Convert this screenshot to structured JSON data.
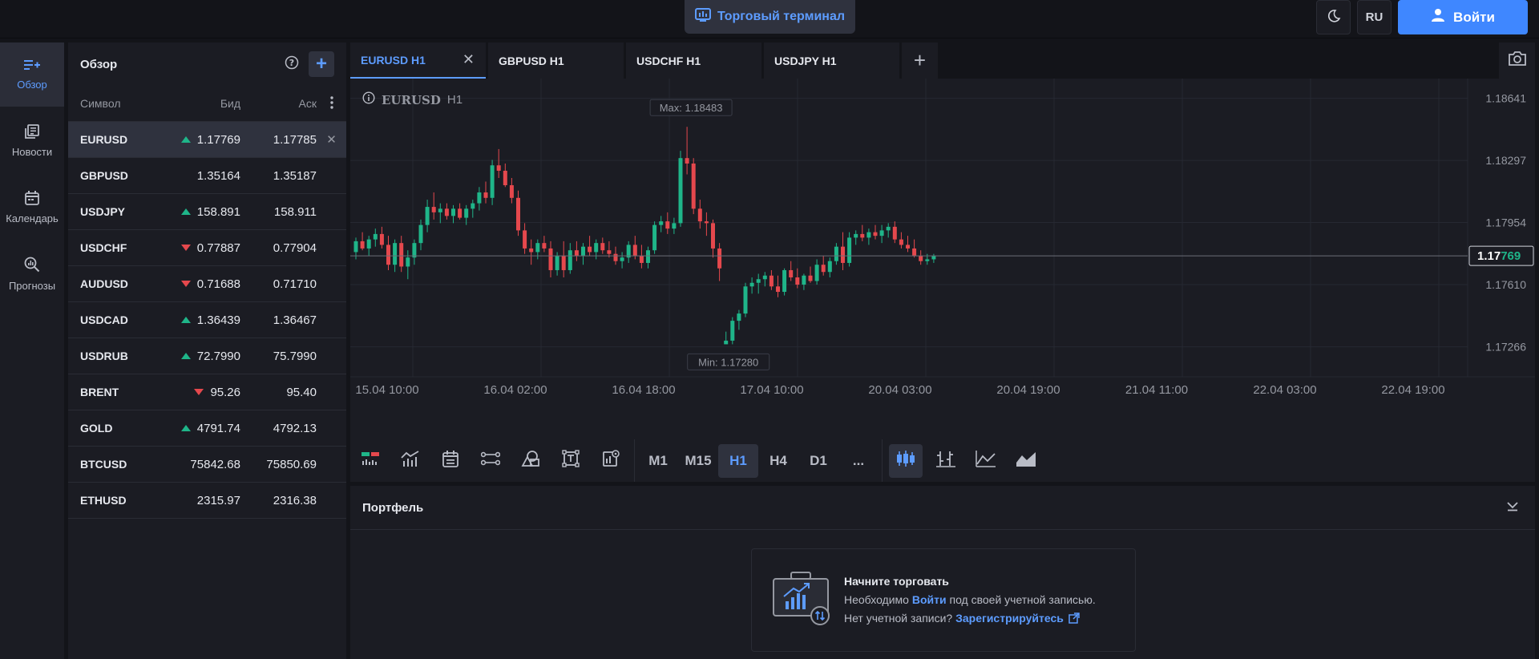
{
  "header": {
    "terminal_label": "Торговый терминал",
    "lang": "RU",
    "login_label": "Войти"
  },
  "nav": {
    "items": [
      {
        "label": "Обзор",
        "icon": "overview-icon"
      },
      {
        "label": "Новости",
        "icon": "news-icon"
      },
      {
        "label": "Календарь",
        "icon": "calendar-icon"
      },
      {
        "label": "Прогнозы",
        "icon": "forecast-icon"
      }
    ]
  },
  "watchlist": {
    "title": "Обзор",
    "columns": {
      "symbol": "Символ",
      "bid": "Бид",
      "ask": "Аск"
    },
    "rows": [
      {
        "symbol": "EURUSD",
        "dir": "up",
        "bid": "1.17769",
        "ask": "1.17785"
      },
      {
        "symbol": "GBPUSD",
        "dir": "none",
        "bid": "1.35164",
        "ask": "1.35187"
      },
      {
        "symbol": "USDJPY",
        "dir": "up",
        "bid": "158.891",
        "ask": "158.911"
      },
      {
        "symbol": "USDCHF",
        "dir": "down",
        "bid": "0.77887",
        "ask": "0.77904"
      },
      {
        "symbol": "AUDUSD",
        "dir": "down",
        "bid": "0.71688",
        "ask": "0.71710"
      },
      {
        "symbol": "USDCAD",
        "dir": "up",
        "bid": "1.36439",
        "ask": "1.36467"
      },
      {
        "symbol": "USDRUB",
        "dir": "up",
        "bid": "72.7990",
        "ask": "75.7990"
      },
      {
        "symbol": "BRENT",
        "dir": "down",
        "bid": "95.26",
        "ask": "95.40"
      },
      {
        "symbol": "GOLD",
        "dir": "up",
        "bid": "4791.74",
        "ask": "4792.13"
      },
      {
        "symbol": "BTCUSD",
        "dir": "none",
        "bid": "75842.68",
        "ask": "75850.69"
      },
      {
        "symbol": "ETHUSD",
        "dir": "none",
        "bid": "2315.97",
        "ask": "2316.38"
      }
    ]
  },
  "tabs": [
    {
      "label": "EURUSD H1",
      "active": true
    },
    {
      "label": "GBPUSD H1",
      "active": false
    },
    {
      "label": "USDCHF H1",
      "active": false
    },
    {
      "label": "USDJPY H1",
      "active": false
    }
  ],
  "chart": {
    "symbol": "EURUSD",
    "timeframe": "H1",
    "current_price": "1.17769",
    "current_price_main": "1.17",
    "current_price_tail": "769"
  },
  "chart_data": {
    "type": "candlestick",
    "ylim": [
      1.171,
      1.1875
    ],
    "yticks": [
      1.18641,
      1.18297,
      1.17954,
      1.1761,
      1.17266
    ],
    "xticks": [
      "15.04 10:00",
      "16.04 02:00",
      "16.04 18:00",
      "17.04 10:00",
      "20.04 03:00",
      "20.04 19:00",
      "21.04 11:00",
      "22.04 03:00",
      "22.04 19:00"
    ],
    "max_label": "Max: 1.18483",
    "min_label": "Min: 1.17280",
    "current": 1.17769,
    "candles": [
      [
        1.1779,
        1.1787,
        1.1775,
        1.1785
      ],
      [
        1.1785,
        1.179,
        1.178,
        1.1781
      ],
      [
        1.1781,
        1.1788,
        1.1777,
        1.1786
      ],
      [
        1.1786,
        1.1792,
        1.1782,
        1.1789
      ],
      [
        1.1789,
        1.1793,
        1.1781,
        1.1783
      ],
      [
        1.1783,
        1.1788,
        1.1769,
        1.1772
      ],
      [
        1.1772,
        1.1786,
        1.1768,
        1.1784
      ],
      [
        1.1784,
        1.1788,
        1.1768,
        1.1771
      ],
      [
        1.1771,
        1.178,
        1.1764,
        1.1776
      ],
      [
        1.1776,
        1.1786,
        1.1772,
        1.1784
      ],
      [
        1.1784,
        1.1797,
        1.178,
        1.1794
      ],
      [
        1.1794,
        1.1808,
        1.179,
        1.1804
      ],
      [
        1.1804,
        1.1812,
        1.1797,
        1.1801
      ],
      [
        1.1801,
        1.1806,
        1.1795,
        1.1803
      ],
      [
        1.1803,
        1.1806,
        1.1797,
        1.1799
      ],
      [
        1.1799,
        1.1805,
        1.1795,
        1.1803
      ],
      [
        1.1803,
        1.1806,
        1.1797,
        1.1798
      ],
      [
        1.1798,
        1.1805,
        1.1794,
        1.1803
      ],
      [
        1.1803,
        1.1808,
        1.1798,
        1.1806
      ],
      [
        1.1806,
        1.1815,
        1.1802,
        1.1812
      ],
      [
        1.1812,
        1.1818,
        1.1806,
        1.1809
      ],
      [
        1.1809,
        1.183,
        1.1805,
        1.1827
      ],
      [
        1.1827,
        1.1836,
        1.182,
        1.1824
      ],
      [
        1.1824,
        1.1828,
        1.1815,
        1.1816
      ],
      [
        1.1816,
        1.182,
        1.1806,
        1.1809
      ],
      [
        1.1809,
        1.1813,
        1.1788,
        1.1791
      ],
      [
        1.1791,
        1.1795,
        1.1778,
        1.1781
      ],
      [
        1.1781,
        1.1786,
        1.1772,
        1.1779
      ],
      [
        1.1779,
        1.1786,
        1.1775,
        1.1784
      ],
      [
        1.1784,
        1.1788,
        1.1779,
        1.1781
      ],
      [
        1.1781,
        1.1785,
        1.1765,
        1.1769
      ],
      [
        1.1769,
        1.1779,
        1.1766,
        1.1777
      ],
      [
        1.1777,
        1.1785,
        1.1765,
        1.1769
      ],
      [
        1.1769,
        1.1784,
        1.1767,
        1.178
      ],
      [
        1.178,
        1.1785,
        1.1774,
        1.1777
      ],
      [
        1.1777,
        1.1784,
        1.1772,
        1.1782
      ],
      [
        1.1782,
        1.1788,
        1.1777,
        1.1779
      ],
      [
        1.1779,
        1.1786,
        1.1775,
        1.1784
      ],
      [
        1.1784,
        1.1787,
        1.1778,
        1.178
      ],
      [
        1.178,
        1.1785,
        1.1776,
        1.1778
      ],
      [
        1.1778,
        1.1782,
        1.1772,
        1.1774
      ],
      [
        1.1774,
        1.1779,
        1.177,
        1.1776
      ],
      [
        1.1776,
        1.1785,
        1.1773,
        1.1783
      ],
      [
        1.1783,
        1.1788,
        1.1775,
        1.1777
      ],
      [
        1.1777,
        1.1783,
        1.177,
        1.1773
      ],
      [
        1.1773,
        1.1782,
        1.177,
        1.178
      ],
      [
        1.178,
        1.1796,
        1.1778,
        1.1794
      ],
      [
        1.1794,
        1.1799,
        1.179,
        1.1796
      ],
      [
        1.1796,
        1.1801,
        1.1789,
        1.1792
      ],
      [
        1.1792,
        1.1798,
        1.1789,
        1.1795
      ],
      [
        1.1795,
        1.1835,
        1.1793,
        1.1831
      ],
      [
        1.1831,
        1.18483,
        1.1822,
        1.1828
      ],
      [
        1.1828,
        1.1831,
        1.18,
        1.1803
      ],
      [
        1.1803,
        1.1808,
        1.1792,
        1.1796
      ],
      [
        1.1796,
        1.1801,
        1.1788,
        1.1795
      ],
      [
        1.1795,
        1.1797,
        1.1776,
        1.1781
      ],
      [
        1.1781,
        1.1784,
        1.1763,
        1.177
      ],
      [
        1.1728,
        1.1735,
        1.1728,
        1.173
      ],
      [
        1.173,
        1.1743,
        1.1728,
        1.1741
      ],
      [
        1.1741,
        1.1747,
        1.1736,
        1.1745
      ],
      [
        1.1745,
        1.1762,
        1.1743,
        1.176
      ],
      [
        1.176,
        1.1765,
        1.1756,
        1.1762
      ],
      [
        1.1762,
        1.1767,
        1.1756,
        1.1764
      ],
      [
        1.1764,
        1.1768,
        1.176,
        1.1766
      ],
      [
        1.1766,
        1.1769,
        1.1758,
        1.176
      ],
      [
        1.176,
        1.1766,
        1.1754,
        1.1757
      ],
      [
        1.1757,
        1.177,
        1.1755,
        1.1769
      ],
      [
        1.1769,
        1.1774,
        1.1763,
        1.1765
      ],
      [
        1.1765,
        1.177,
        1.1759,
        1.1761
      ],
      [
        1.1761,
        1.1767,
        1.1758,
        1.1766
      ],
      [
        1.1766,
        1.1771,
        1.1762,
        1.1763
      ],
      [
        1.1763,
        1.1775,
        1.1761,
        1.1772
      ],
      [
        1.1772,
        1.1777,
        1.1766,
        1.1768
      ],
      [
        1.1768,
        1.1776,
        1.1765,
        1.1774
      ],
      [
        1.1774,
        1.1784,
        1.1772,
        1.1782
      ],
      [
        1.1782,
        1.179,
        1.1769,
        1.1773
      ],
      [
        1.1773,
        1.179,
        1.1771,
        1.1787
      ],
      [
        1.1787,
        1.1791,
        1.1783,
        1.1789
      ],
      [
        1.1789,
        1.1794,
        1.1785,
        1.1787
      ],
      [
        1.1787,
        1.1792,
        1.1783,
        1.179
      ],
      [
        1.179,
        1.1794,
        1.1786,
        1.1788
      ],
      [
        1.1788,
        1.1794,
        1.1784,
        1.1791
      ],
      [
        1.1791,
        1.1795,
        1.1787,
        1.1793
      ],
      [
        1.1793,
        1.1796,
        1.1784,
        1.1786
      ],
      [
        1.1786,
        1.179,
        1.1781,
        1.1783
      ],
      [
        1.1783,
        1.1788,
        1.1779,
        1.1781
      ],
      [
        1.1781,
        1.1786,
        1.1776,
        1.1777
      ],
      [
        1.1777,
        1.178,
        1.1772,
        1.1774
      ],
      [
        1.1774,
        1.1778,
        1.1772,
        1.1775
      ],
      [
        1.1775,
        1.1778,
        1.1773,
        1.1777
      ]
    ]
  },
  "timeframes": [
    "M1",
    "M15",
    "H1",
    "H4",
    "D1",
    "..."
  ],
  "active_timeframe": "H1",
  "portfolio": {
    "title": "Портфель",
    "card_title": "Начните торговать",
    "line1_pre": "Необходимо ",
    "line1_link": "Войти",
    "line1_post": " под своей учетной записью.",
    "line2_pre": "Нет учетной записи? ",
    "line2_link": "Зарегистрируйтесь"
  },
  "colors": {
    "up": "#1fb589",
    "down": "#e5484d",
    "accent": "#5d9cff",
    "primary": "#3f87ff"
  }
}
